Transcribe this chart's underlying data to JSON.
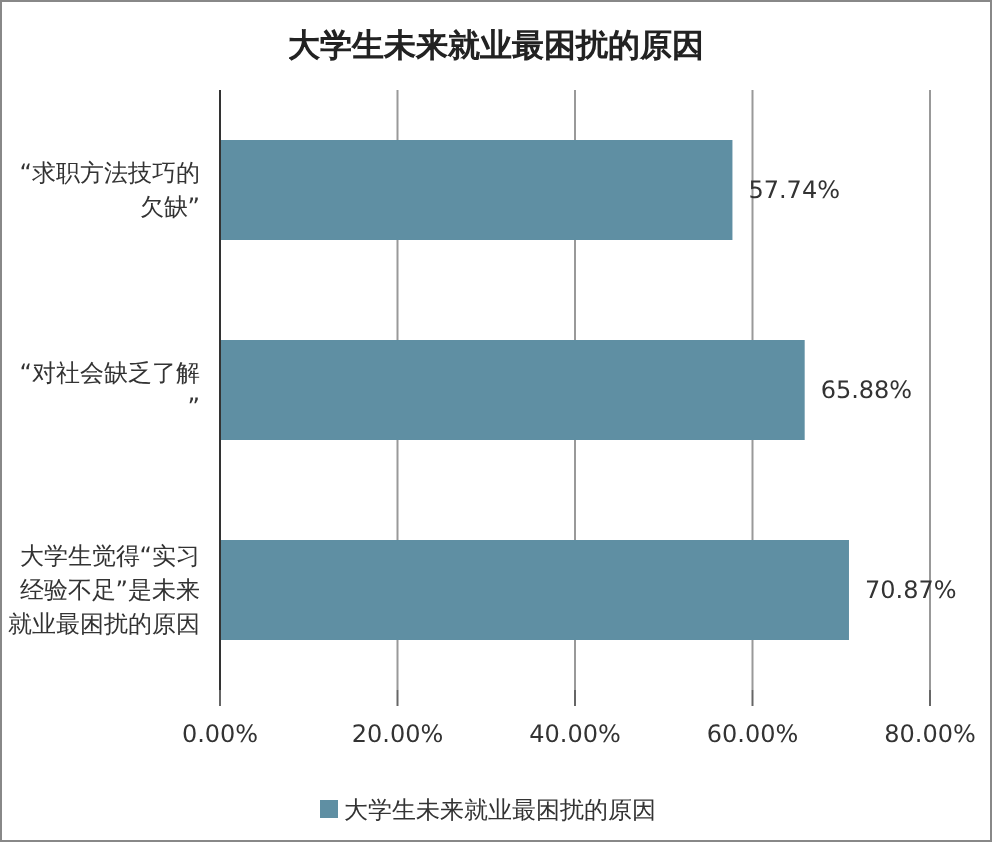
{
  "chart_data": {
    "type": "bar",
    "orientation": "horizontal",
    "title": "大学生未来就业最困扰的原因",
    "categories": [
      "“求职方法技巧的欠缺”",
      "“对社会缺乏了解”",
      "大学生觉得“实习经验不足”是未来就业最困扰的原因"
    ],
    "series": [
      {
        "name": "大学生未来就业最困扰的原因",
        "color": "#5f8fa3",
        "values": [
          57.74,
          65.88,
          70.87
        ],
        "value_labels": [
          "57.74%",
          "65.88%",
          "70.87%"
        ]
      }
    ],
    "xlim": [
      0,
      80
    ],
    "xticks": [
      {
        "value": 0,
        "label": "0.00%"
      },
      {
        "value": 20,
        "label": "20.00%"
      },
      {
        "value": 40,
        "label": "40.00%"
      },
      {
        "value": 60,
        "label": "60.00%"
      },
      {
        "value": 80,
        "label": "80.00%"
      }
    ],
    "grid": "x",
    "legend": "bottom"
  }
}
